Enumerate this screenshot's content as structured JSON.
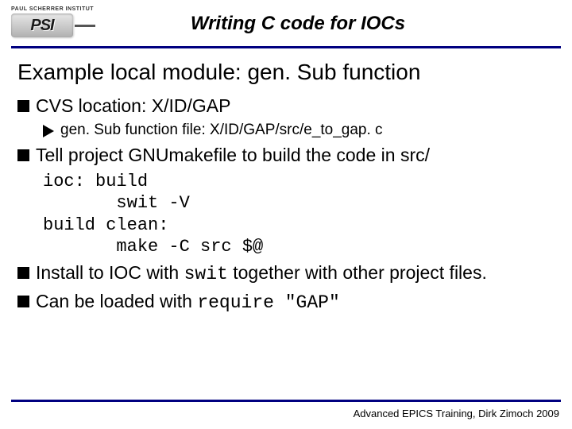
{
  "logo": {
    "topText": "PAUL SCHERRER INSTITUT",
    "main": "PSI"
  },
  "header": {
    "title": "Writing C code for IOCs"
  },
  "section": {
    "title": "Example local module: gen. Sub function"
  },
  "bullets": {
    "b1": "CVS location: X/ID/GAP",
    "b1sub": "gen. Sub function file: X/ID/GAP/src/e_to_gap. c",
    "b2": "Tell project GNUmakefile to build the code in src/",
    "code": "ioc: build\n       swit -V\nbuild clean:\n       make -C src $@",
    "b3pre": "Install to IOC with ",
    "b3mono": "swit",
    "b3post": " together with other project files.",
    "b4pre": "Can be loaded with ",
    "b4mono": "require \"GAP\""
  },
  "footer": {
    "text": "Advanced EPICS Training, Dirk Zimoch 2009"
  },
  "colors": {
    "rule": "#000080",
    "text": "#000000",
    "background": "#ffffff"
  }
}
